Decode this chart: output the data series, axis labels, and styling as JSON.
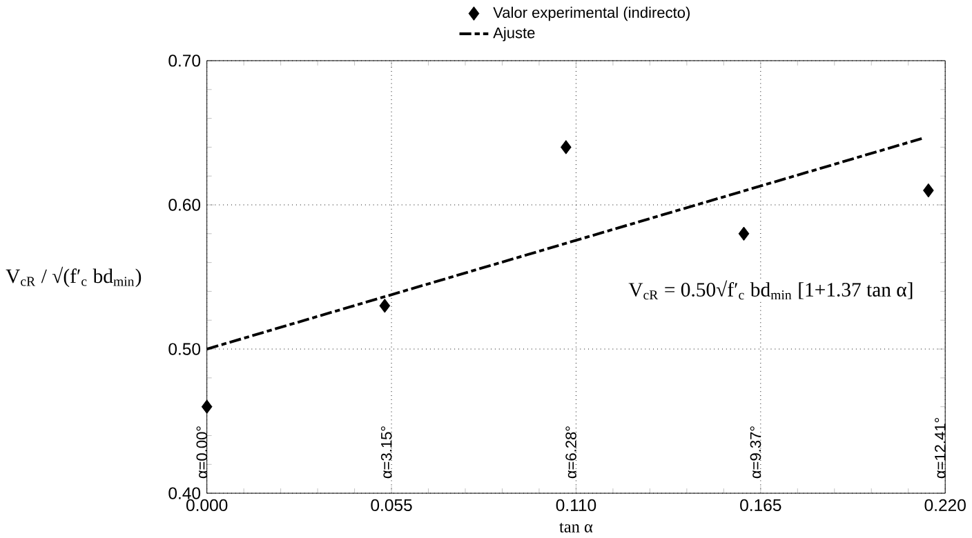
{
  "chart_data": {
    "type": "scatter",
    "xlabel": "tan α",
    "ylabel": "V$_{cR}$ / √(f′$_{c}$ bd$_{min}$)",
    "xlim": [
      0,
      0.22
    ],
    "ylim": [
      0.4,
      0.7
    ],
    "xticks": [
      {
        "value": 0,
        "label": "0.000"
      },
      {
        "value": 0.055,
        "label": "0.055"
      },
      {
        "value": 0.11,
        "label": "0.110"
      },
      {
        "value": 0.165,
        "label": "0.165"
      },
      {
        "value": 0.22,
        "label": "0.220"
      }
    ],
    "yticks": [
      {
        "value": 0.4,
        "label": "0.40"
      },
      {
        "value": 0.5,
        "label": "0.50"
      },
      {
        "value": 0.6,
        "label": "0.60"
      },
      {
        "value": 0.7,
        "label": "0.70"
      }
    ],
    "grid": true,
    "legend": "top",
    "series": [
      {
        "name": "Valor experimental (indirecto)",
        "marker": "diamond",
        "color": "#000000",
        "x": [
          0,
          0.053,
          0.107,
          0.16,
          0.215
        ],
        "values": [
          0.46,
          0.53,
          0.64,
          0.58,
          0.61
        ]
      },
      {
        "name": "Ajuste",
        "type": "line",
        "marker": "none",
        "line_style": "dashed",
        "color": "#000000",
        "x": [
          0,
          0.213
        ],
        "values": [
          0.5,
          0.646
        ]
      }
    ],
    "annotations": [
      "α=0.00°",
      "α=3.15°",
      "α=6.28°",
      "α=9.37°",
      "α=12.41°",
      "V$_{cR}$ = 0.50√f′$_{c}$ bd$_{min}$ [1+1.37 tan α]"
    ]
  }
}
